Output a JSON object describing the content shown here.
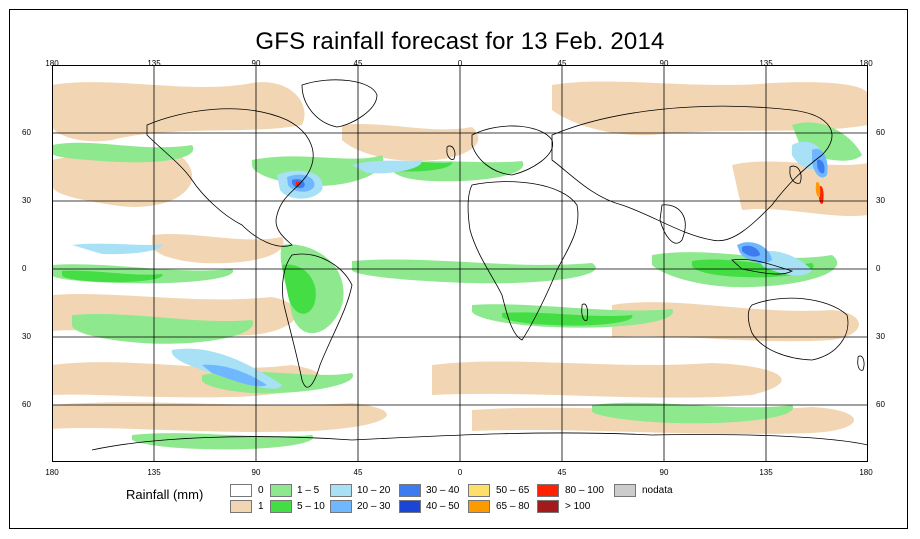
{
  "title": "GFS rainfall forecast for 13 Feb. 2014",
  "top_ticks": [
    "180",
    "135",
    "90",
    "45",
    "0",
    "45",
    "90",
    "135",
    "180"
  ],
  "bottom_ticks": [
    "180",
    "135",
    "90",
    "45",
    "0",
    "45",
    "90",
    "135",
    "180"
  ],
  "lat_ticks": [
    "60",
    "30",
    "0",
    "30",
    "60"
  ],
  "legend": {
    "title": "Rainfall (mm)",
    "items": [
      {
        "label": "0",
        "color": "#ffffff"
      },
      {
        "label": "1",
        "color": "#f2d6b3"
      },
      {
        "label": "1 – 5",
        "color": "#8ee88e"
      },
      {
        "label": "5 – 10",
        "color": "#44dd44"
      },
      {
        "label": "10 – 20",
        "color": "#a8e0f5"
      },
      {
        "label": "20 – 30",
        "color": "#6fb8ff"
      },
      {
        "label": "30 – 40",
        "color": "#3d7cf0"
      },
      {
        "label": "40 – 50",
        "color": "#1a45d6"
      },
      {
        "label": "50 – 65",
        "color": "#ffe066"
      },
      {
        "label": "65 – 80",
        "color": "#ff9900"
      },
      {
        "label": "80 – 100",
        "color": "#ff2200"
      },
      {
        "label": "> 100",
        "color": "#a31a1a"
      },
      {
        "label": "nodata",
        "color": "#cccccc"
      }
    ]
  }
}
